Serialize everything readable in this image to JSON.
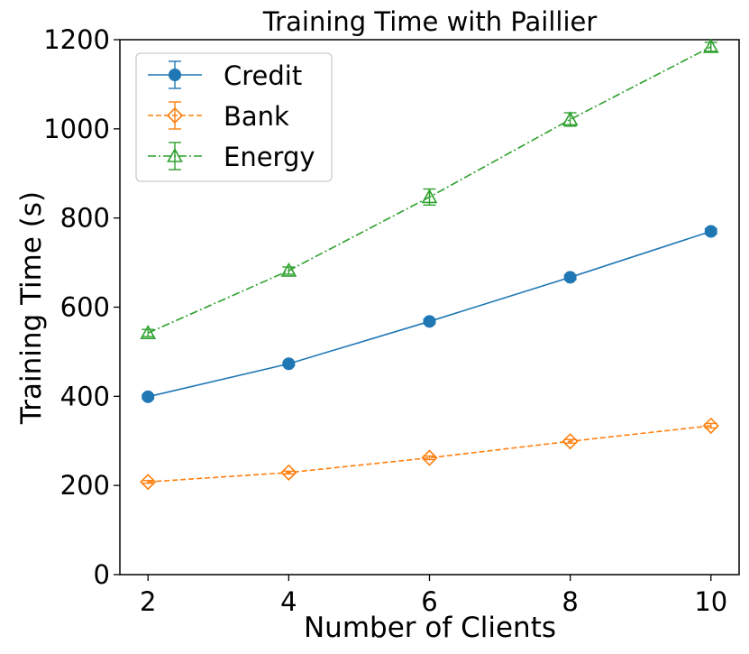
{
  "chart_data": {
    "type": "line",
    "title": "Training Time with Paillier",
    "xlabel": "Number of Clients",
    "ylabel": "Training Time (s)",
    "x": [
      2,
      4,
      6,
      8,
      10
    ],
    "xticks": [
      "2",
      "4",
      "6",
      "8",
      "10"
    ],
    "yticks": [
      "0",
      "200",
      "400",
      "600",
      "800",
      "1000",
      "1200"
    ],
    "xlim": [
      1.6,
      10.4
    ],
    "ylim": [
      0,
      1200
    ],
    "grid": false,
    "legend_position": "top-left",
    "series": [
      {
        "name": "Credit",
        "color": "#1f77b4",
        "marker": "circle",
        "line_style": "solid",
        "values": [
          399,
          473,
          568,
          667,
          770
        ],
        "errors": [
          4,
          4,
          5,
          5,
          6
        ]
      },
      {
        "name": "Bank",
        "color": "#ff7f0e",
        "marker": "diamond-open",
        "line_style": "dashed",
        "values": [
          208,
          229,
          262,
          299,
          334
        ],
        "errors": [
          3,
          3,
          4,
          4,
          5
        ]
      },
      {
        "name": "Energy",
        "color": "#2ca02c",
        "marker": "triangle-open",
        "line_style": "dashdot",
        "values": [
          542,
          682,
          847,
          1021,
          1184
        ],
        "errors": [
          8,
          8,
          18,
          15,
          10
        ]
      }
    ]
  }
}
